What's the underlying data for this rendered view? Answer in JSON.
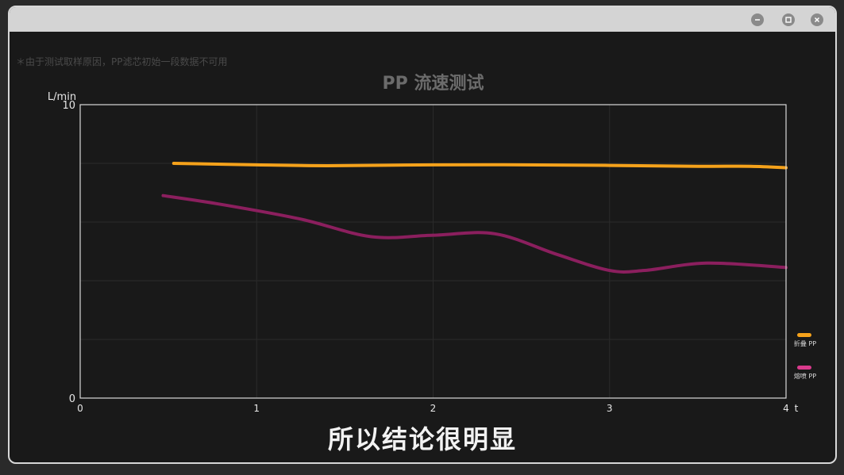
{
  "window": {
    "controls": [
      {
        "name": "minimize-icon"
      },
      {
        "name": "maximize-icon"
      },
      {
        "name": "close-icon"
      }
    ]
  },
  "note": "＊由于测试取样原因，PP滤芯初始一段数据不可用",
  "caption": "所以结论很明显",
  "colors": {
    "background": "#191919",
    "grid": "#2a2a2a",
    "axis": "#d9d9d9",
    "title": "#6b6b6b",
    "series_folded": "#f5a21b",
    "series_meltblown": "#8b1f5e",
    "legend_meltblown": "#d93a8c"
  },
  "chart_data": {
    "type": "line",
    "title": "PP 流速测试",
    "ylabel": "L/min",
    "xlabel": "t",
    "xlim": [
      0,
      4
    ],
    "ylim": [
      0,
      10
    ],
    "x_ticks": [
      "0",
      "1",
      "2",
      "3",
      "4"
    ],
    "y_ticks": [
      "0",
      "10"
    ],
    "grid": true,
    "legend_position": "right",
    "series": [
      {
        "name": "折叠 PP",
        "x": [
          0.53,
          1.0,
          1.4,
          2.0,
          2.5,
          3.0,
          3.5,
          3.8,
          4.0
        ],
        "y": [
          8.0,
          7.95,
          7.92,
          7.95,
          7.95,
          7.93,
          7.9,
          7.9,
          7.85
        ]
      },
      {
        "name": "熔喷 PP",
        "x": [
          0.47,
          0.8,
          1.25,
          1.65,
          2.0,
          2.35,
          2.7,
          3.0,
          3.2,
          3.55,
          4.0
        ],
        "y": [
          6.9,
          6.6,
          6.1,
          5.5,
          5.55,
          5.6,
          4.9,
          4.35,
          4.35,
          4.6,
          4.45
        ]
      }
    ]
  }
}
